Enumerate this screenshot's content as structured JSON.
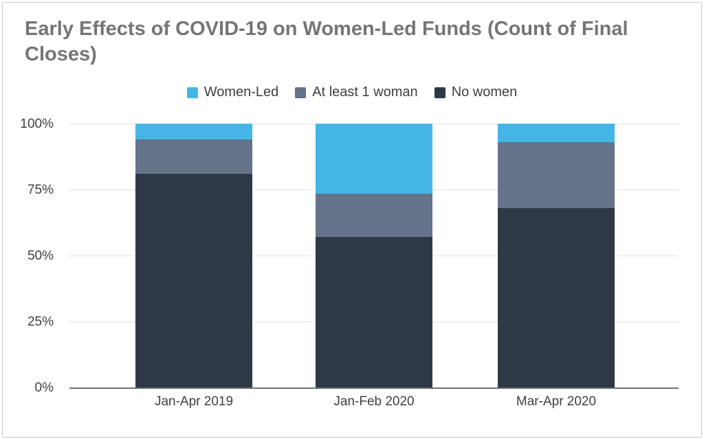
{
  "title": {
    "text": "Early Effects of COVID-19 on Women-Led Funds (Count of Final Closes)",
    "color": "#757575"
  },
  "legend": {
    "items": [
      {
        "label": "Women-Led",
        "color": "#45b5e5"
      },
      {
        "label": "At least 1 woman",
        "color": "#647389"
      },
      {
        "label": "No women",
        "color": "#2e3847"
      }
    ]
  },
  "colors": {
    "women_led": "#45b5e5",
    "at_least_1_woman": "#647389",
    "no_women": "#2e3847",
    "gridline": "#e1e1e1",
    "axis_line": "#707070",
    "title_text": "#757575",
    "label_text": "#3c4043",
    "card_border": "#c8c8c8"
  },
  "chart_data": {
    "type": "bar",
    "stacked": true,
    "title": "Early Effects of COVID-19 on Women-Led Funds (Count of Final Closes)",
    "categories": [
      "Jan-Apr 2019",
      "Jan-Feb 2020",
      "Mar-Apr 2020"
    ],
    "series": [
      {
        "name": "No women",
        "color": "#2e3847",
        "values": [
          81,
          57,
          68
        ]
      },
      {
        "name": "At least 1 woman",
        "color": "#647389",
        "values": [
          13,
          16.5,
          25
        ]
      },
      {
        "name": "Women-Led",
        "color": "#45b5e5",
        "values": [
          6,
          26.5,
          7
        ]
      }
    ],
    "unit": "percent of final closes",
    "ylim": [
      0,
      100
    ],
    "yticks": [
      {
        "value": 0,
        "label": "0%"
      },
      {
        "value": 25,
        "label": "25%"
      },
      {
        "value": 50,
        "label": "50%"
      },
      {
        "value": 75,
        "label": "75%"
      },
      {
        "value": 100,
        "label": "100%"
      }
    ],
    "grid": true,
    "legend_position": "top",
    "legend_order": [
      "Women-Led",
      "At least 1 woman",
      "No women"
    ]
  }
}
